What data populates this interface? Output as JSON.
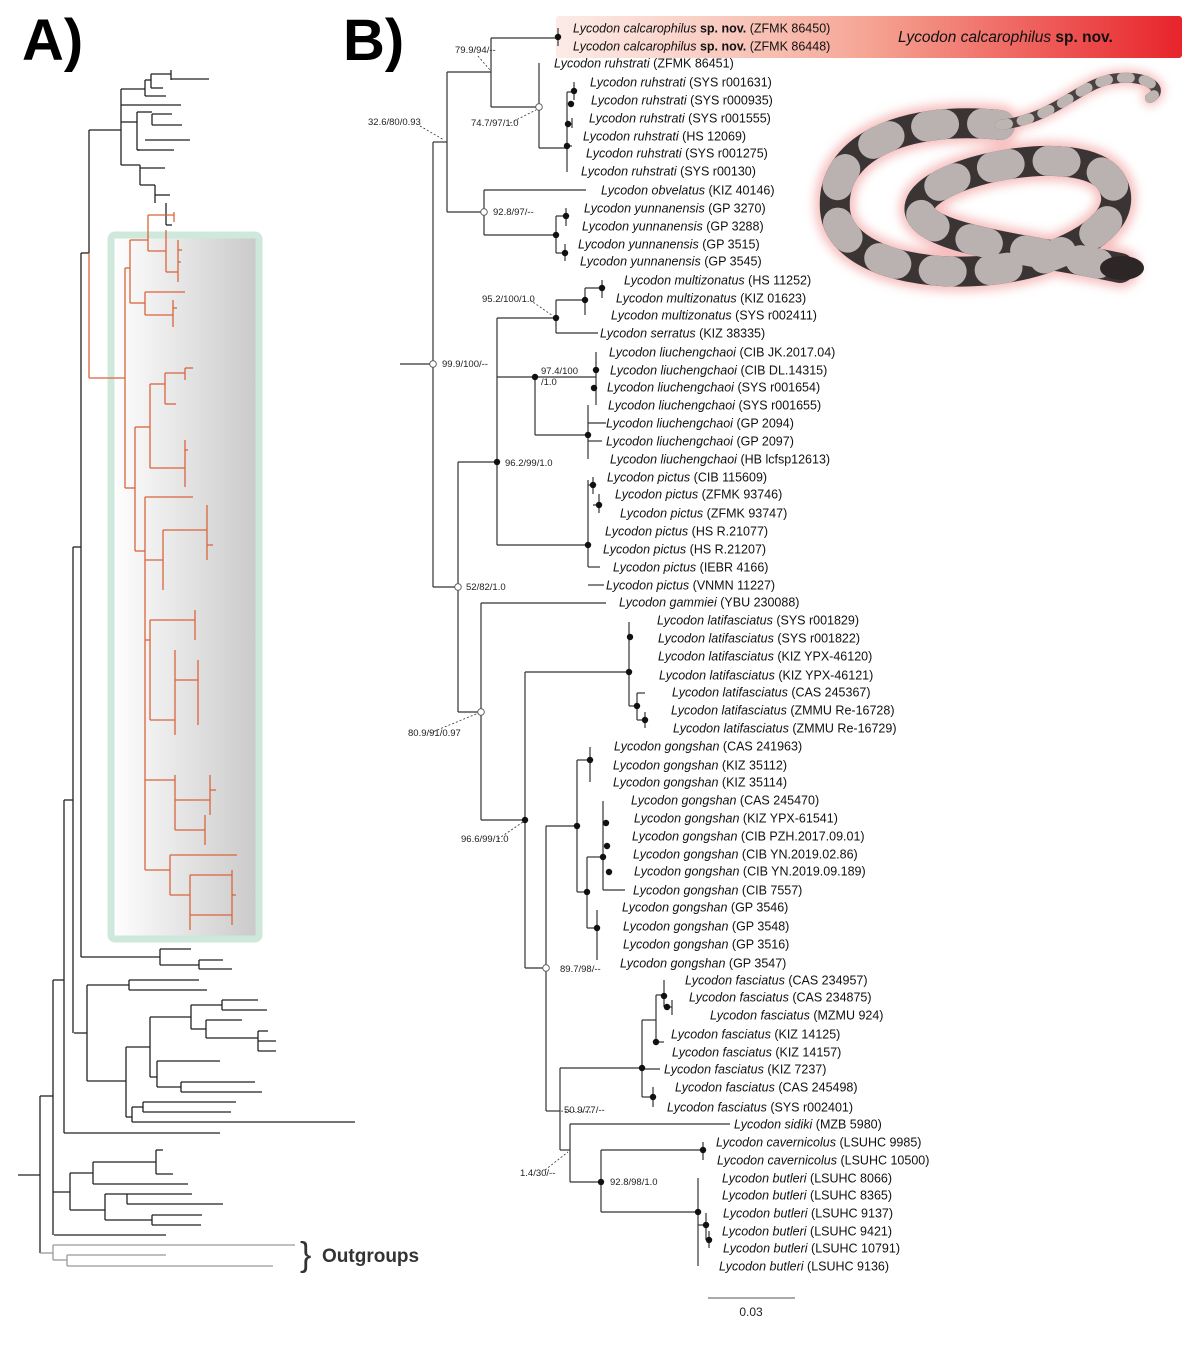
{
  "panels": {
    "a_label": "A)",
    "b_label": "B)"
  },
  "outgroups_label": "Outgroups",
  "outgroups_brace": "}",
  "banner": {
    "species": "Lycodon calcarophilus",
    "qualifier": "sp. nov.",
    "color": "#e8232b"
  },
  "scale_bar": {
    "value": "0.03"
  },
  "colors": {
    "highlight_clade": "#d9643c",
    "box_border": "#cfe8dc",
    "outgroup_branch": "#999999"
  },
  "tips": [
    {
      "genus_species": "Lycodon calcarophilus",
      "qualifier": "sp. nov.",
      "voucher": "(ZFMK 86450)"
    },
    {
      "genus_species": "Lycodon calcarophilus",
      "qualifier": "sp. nov.",
      "voucher": "(ZFMK 86448)"
    },
    {
      "genus_species": "Lycodon ruhstrati",
      "qualifier": "",
      "voucher": "(ZFMK 86451)"
    },
    {
      "genus_species": "Lycodon ruhstrati",
      "qualifier": "",
      "voucher": "(SYS r001631)"
    },
    {
      "genus_species": "Lycodon ruhstrati",
      "qualifier": "",
      "voucher": "(SYS r000935)"
    },
    {
      "genus_species": "Lycodon ruhstrati",
      "qualifier": "",
      "voucher": "(SYS r001555)"
    },
    {
      "genus_species": "Lycodon ruhstrati",
      "qualifier": "",
      "voucher": "(HS 12069)"
    },
    {
      "genus_species": "Lycodon ruhstrati",
      "qualifier": "",
      "voucher": "(SYS r001275)"
    },
    {
      "genus_species": "Lycodon ruhstrati",
      "qualifier": "",
      "voucher": "(SYS r00130)"
    },
    {
      "genus_species": "Lycodon obvelatus",
      "qualifier": "",
      "voucher": "(KIZ 40146)"
    },
    {
      "genus_species": "Lycodon yunnanensis",
      "qualifier": "",
      "voucher": "(GP 3270)"
    },
    {
      "genus_species": "Lycodon yunnanensis",
      "qualifier": "",
      "voucher": "(GP 3288)"
    },
    {
      "genus_species": "Lycodon yunnanensis",
      "qualifier": "",
      "voucher": "(GP 3515)"
    },
    {
      "genus_species": "Lycodon yunnanensis",
      "qualifier": "",
      "voucher": "(GP 3545)"
    },
    {
      "genus_species": "Lycodon multizonatus",
      "qualifier": "",
      "voucher": "(HS 11252)"
    },
    {
      "genus_species": "Lycodon multizonatus",
      "qualifier": "",
      "voucher": "(KIZ 01623)"
    },
    {
      "genus_species": "Lycodon multizonatus",
      "qualifier": "",
      "voucher": "(SYS r002411)"
    },
    {
      "genus_species": "Lycodon serratus",
      "qualifier": "",
      "voucher": "(KIZ 38335)"
    },
    {
      "genus_species": "Lycodon liuchengchaoi",
      "qualifier": "",
      "voucher": "(CIB JK.2017.04)"
    },
    {
      "genus_species": "Lycodon liuchengchaoi",
      "qualifier": "",
      "voucher": "(CIB DL.14315)"
    },
    {
      "genus_species": "Lycodon liuchengchaoi",
      "qualifier": "",
      "voucher": "(SYS r001654)"
    },
    {
      "genus_species": "Lycodon liuchengchaoi",
      "qualifier": "",
      "voucher": "(SYS r001655)"
    },
    {
      "genus_species": "Lycodon liuchengchaoi",
      "qualifier": "",
      "voucher": "(GP 2094)"
    },
    {
      "genus_species": "Lycodon liuchengchaoi",
      "qualifier": "",
      "voucher": "(GP 2097)"
    },
    {
      "genus_species": "Lycodon liuchengchaoi",
      "qualifier": "",
      "voucher": "(HB lcfsp12613)"
    },
    {
      "genus_species": "Lycodon pictus",
      "qualifier": "",
      "voucher": "(CIB 115609)"
    },
    {
      "genus_species": "Lycodon pictus",
      "qualifier": "",
      "voucher": "(ZFMK 93746)"
    },
    {
      "genus_species": "Lycodon pictus",
      "qualifier": "",
      "voucher": "(ZFMK 93747)"
    },
    {
      "genus_species": "Lycodon pictus",
      "qualifier": "",
      "voucher": "(HS R.21077)"
    },
    {
      "genus_species": "Lycodon pictus",
      "qualifier": "",
      "voucher": "(HS R.21207)"
    },
    {
      "genus_species": "Lycodon pictus",
      "qualifier": "",
      "voucher": "(IEBR 4166)"
    },
    {
      "genus_species": "Lycodon pictus",
      "qualifier": "",
      "voucher": "(VNMN 11227)"
    },
    {
      "genus_species": "Lycodon gammiei",
      "qualifier": "",
      "voucher": "(YBU 230088)"
    },
    {
      "genus_species": "Lycodon latifasciatus",
      "qualifier": "",
      "voucher": "(SYS r001829)"
    },
    {
      "genus_species": "Lycodon latifasciatus",
      "qualifier": "",
      "voucher": "(SYS r001822)"
    },
    {
      "genus_species": "Lycodon latifasciatus",
      "qualifier": "",
      "voucher": "(KIZ YPX-46120)"
    },
    {
      "genus_species": "Lycodon latifasciatus",
      "qualifier": "",
      "voucher": "(KIZ YPX-46121)"
    },
    {
      "genus_species": "Lycodon latifasciatus",
      "qualifier": "",
      "voucher": "(CAS 245367)"
    },
    {
      "genus_species": "Lycodon latifasciatus",
      "qualifier": "",
      "voucher": "(ZMMU Re-16728)"
    },
    {
      "genus_species": "Lycodon latifasciatus",
      "qualifier": "",
      "voucher": "(ZMMU Re-16729)"
    },
    {
      "genus_species": "Lycodon gongshan",
      "qualifier": "",
      "voucher": "(CAS 241963)"
    },
    {
      "genus_species": "Lycodon gongshan",
      "qualifier": "",
      "voucher": "(KIZ 35112)"
    },
    {
      "genus_species": "Lycodon gongshan",
      "qualifier": "",
      "voucher": "(KIZ 35114)"
    },
    {
      "genus_species": "Lycodon gongshan",
      "qualifier": "",
      "voucher": "(CAS 245470)"
    },
    {
      "genus_species": "Lycodon gongshan",
      "qualifier": "",
      "voucher": "(KIZ YPX-61541)"
    },
    {
      "genus_species": "Lycodon gongshan",
      "qualifier": "",
      "voucher": "(CIB PZH.2017.09.01)"
    },
    {
      "genus_species": "Lycodon gongshan",
      "qualifier": "",
      "voucher": "(CIB YN.2019.02.86)"
    },
    {
      "genus_species": "Lycodon gongshan",
      "qualifier": "",
      "voucher": "(CIB YN.2019.09.189)"
    },
    {
      "genus_species": "Lycodon gongshan",
      "qualifier": "",
      "voucher": "(CIB 7557)"
    },
    {
      "genus_species": "Lycodon gongshan",
      "qualifier": "",
      "voucher": "(GP 3546)"
    },
    {
      "genus_species": "Lycodon gongshan",
      "qualifier": "",
      "voucher": "(GP 3548)"
    },
    {
      "genus_species": "Lycodon gongshan",
      "qualifier": "",
      "voucher": "(GP 3516)"
    },
    {
      "genus_species": "Lycodon gongshan",
      "qualifier": "",
      "voucher": "(GP 3547)"
    },
    {
      "genus_species": "Lycodon fasciatus",
      "qualifier": "",
      "voucher": "(CAS 234957)"
    },
    {
      "genus_species": "Lycodon fasciatus",
      "qualifier": "",
      "voucher": "(CAS 234875)"
    },
    {
      "genus_species": "Lycodon fasciatus",
      "qualifier": "",
      "voucher": "(MZMU 924)"
    },
    {
      "genus_species": "Lycodon fasciatus",
      "qualifier": "",
      "voucher": "(KIZ 14125)"
    },
    {
      "genus_species": "Lycodon fasciatus",
      "qualifier": "",
      "voucher": "(KIZ 14157)"
    },
    {
      "genus_species": "Lycodon fasciatus",
      "qualifier": "",
      "voucher": "(KIZ 7237)"
    },
    {
      "genus_species": "Lycodon fasciatus",
      "qualifier": "",
      "voucher": "(CAS 245498)"
    },
    {
      "genus_species": "Lycodon fasciatus",
      "qualifier": "",
      "voucher": "(SYS r002401)"
    },
    {
      "genus_species": "Lycodon sidiki",
      "qualifier": "",
      "voucher": "(MZB 5980)"
    },
    {
      "genus_species": "Lycodon cavernicolus",
      "qualifier": "",
      "voucher": "(LSUHC 9985)"
    },
    {
      "genus_species": "Lycodon cavernicolus",
      "qualifier": "",
      "voucher": "(LSUHC 10500)"
    },
    {
      "genus_species": "Lycodon butleri",
      "qualifier": "",
      "voucher": "(LSUHC 8066)"
    },
    {
      "genus_species": "Lycodon butleri",
      "qualifier": "",
      "voucher": "(LSUHC 8365)"
    },
    {
      "genus_species": "Lycodon butleri",
      "qualifier": "",
      "voucher": "(LSUHC 9137)"
    },
    {
      "genus_species": "Lycodon butleri",
      "qualifier": "",
      "voucher": "(LSUHC 9421)"
    },
    {
      "genus_species": "Lycodon butleri",
      "qualifier": "",
      "voucher": "(LSUHC 10791)"
    },
    {
      "genus_species": "Lycodon butleri",
      "qualifier": "",
      "voucher": "(LSUHC 9136)"
    }
  ],
  "node_supports": [
    "79.9/94/--",
    "32.6/80/0.93",
    "74.7/97/1.0",
    "92.8/97/--",
    "95.2/100/1.0",
    "97.4/100",
    "/1.0",
    "99.9/100/--",
    "96.2/99/1.0",
    "52/82/1.0",
    "80.9/91/0.97",
    "96.6/99/1.0",
    "89.7/98/--",
    "50.9/77/--",
    "1.4/30/--",
    "92.8/98/1.0"
  ]
}
